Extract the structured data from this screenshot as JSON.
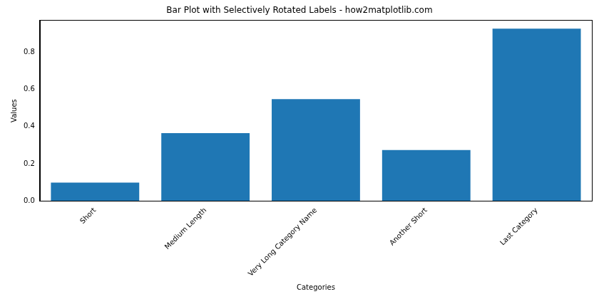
{
  "chart_data": {
    "type": "bar",
    "title": "Bar Plot with Selectively Rotated Labels - how2matplotlib.com",
    "x_label": "Categories",
    "y_label": "Values",
    "categories": [
      "Short",
      "Medium Length",
      "Very Long Category Name",
      "Another Short",
      "Last Category"
    ],
    "values": [
      0.1,
      0.365,
      0.547,
      0.275,
      0.925
    ],
    "color": "#1f77b4",
    "ylim": [
      0,
      0.97
    ],
    "yticks": [
      {
        "value": 0,
        "label": "0.0"
      },
      0.2,
      0.4,
      0.6,
      0.8
    ],
    "grid": false
  }
}
